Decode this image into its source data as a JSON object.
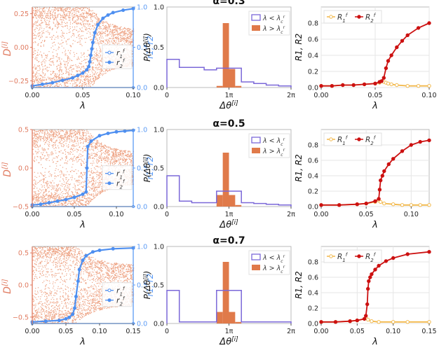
{
  "colors": {
    "scatter": "#e8845a",
    "scatter_axis": "#e07a5f",
    "r_line": "#4e8ff0",
    "r_axis": "#5b9bf5",
    "hist_below": "#7b68d8",
    "hist_above": "#e07a4a",
    "R1": "#f2b84b",
    "R2": "#cc1111",
    "grid": "#e6e6e6"
  },
  "chart_data": [
    {
      "type": "scatter",
      "panel": "row1-left",
      "xlabel": "λ",
      "ylabel_left": "D^[i]",
      "ylabel_right": "r1, r2",
      "xlim": [
        0,
        0.1
      ],
      "ylim_left": [
        -0.3,
        0.3
      ],
      "ylim_right": [
        0,
        1
      ],
      "xticks": [
        0,
        0.05,
        0.1
      ],
      "xtick_labels": [
        "0.00",
        "0.05",
        "0.10"
      ],
      "yticks_left": [
        -0.25,
        0,
        0.25
      ],
      "ytick_labels_left": [
        "−0.25",
        "0.00",
        "0.25"
      ],
      "yticks_right": [
        0,
        0.5,
        1
      ],
      "ytick_labels_right": [
        "0.0",
        "0.5",
        "1.0"
      ],
      "lambda_c": 0.058,
      "spread_below": 0.3,
      "spread_after": 0.13,
      "legend": [
        "r_1^f",
        "r_2^f"
      ],
      "legend_position": "center-right",
      "series": [
        {
          "name": "r_1^f",
          "x": [
            0,
            0.1
          ],
          "y": [
            0,
            0
          ]
        },
        {
          "name": "r_2^f",
          "x": [
            0,
            0.01,
            0.02,
            0.03,
            0.04,
            0.045,
            0.05,
            0.054,
            0.056,
            0.057,
            0.058,
            0.059,
            0.06,
            0.062,
            0.065,
            0.07,
            0.075,
            0.08,
            0.09,
            0.1
          ],
          "y": [
            0.02,
            0.04,
            0.06,
            0.09,
            0.12,
            0.15,
            0.18,
            0.22,
            0.26,
            0.32,
            0.4,
            0.48,
            0.56,
            0.68,
            0.78,
            0.86,
            0.9,
            0.93,
            0.96,
            0.98
          ]
        }
      ]
    },
    {
      "type": "bar",
      "panel": "row1-mid",
      "title": "α=0.3",
      "xlabel": "Δθ^[i]",
      "ylabel": "P(Δθ^[i])",
      "xlim": [
        0,
        2
      ],
      "ylim": [
        0,
        1.0
      ],
      "xticks": [
        0,
        1,
        2
      ],
      "xtick_labels": [
        "0",
        "1π",
        "2π"
      ],
      "yticks": [
        0,
        0.5,
        1.0
      ],
      "ytick_labels": [
        "0.0",
        "0.5",
        "1.0"
      ],
      "legend": [
        "λ < λ_c^r",
        "λ > λ_c^r"
      ],
      "legend_position": "top-right",
      "series": [
        {
          "name": "λ < λ_c^r",
          "style": "step",
          "edges": [
            0,
            0.2,
            0.4,
            0.6,
            0.8,
            1.0,
            1.2,
            1.4,
            1.6,
            1.8,
            2.0
          ],
          "values": [
            0.35,
            0.25,
            0.25,
            0.22,
            0.24,
            0.24,
            0.07,
            0.05,
            0.03,
            0.02
          ]
        },
        {
          "name": "λ > λ_c^r",
          "style": "bar",
          "edges": [
            0.8,
            0.9,
            1.0,
            1.1,
            1.2
          ],
          "values": [
            0.02,
            0.8,
            0.23,
            0.02
          ]
        }
      ]
    },
    {
      "type": "line",
      "panel": "row1-right",
      "xlabel": "λ",
      "ylabel": "R1, R2",
      "xlim": [
        0,
        0.1
      ],
      "ylim": [
        0,
        1.0
      ],
      "xticks": [
        0,
        0.05,
        0.1
      ],
      "xtick_labels": [
        "0.00",
        "0.05",
        "0.10"
      ],
      "yticks": [
        0,
        0.2,
        0.4,
        0.6,
        0.8
      ],
      "ytick_labels": [
        "0.0",
        "0.2",
        "0.4",
        "0.6",
        "0.8"
      ],
      "legend": [
        "R_1^f",
        "R_2^f"
      ],
      "legend_position": "top-left",
      "series": [
        {
          "name": "R_1^f",
          "x": [
            0,
            0.01,
            0.02,
            0.03,
            0.04,
            0.05,
            0.054,
            0.058,
            0.06,
            0.062,
            0.065,
            0.07,
            0.08,
            0.09,
            0.1
          ],
          "y": [
            0.02,
            0.02,
            0.03,
            0.03,
            0.04,
            0.05,
            0.06,
            0.07,
            0.06,
            0.05,
            0.04,
            0.03,
            0.02,
            0.02,
            0.02
          ]
        },
        {
          "name": "R_2^f",
          "x": [
            0,
            0.01,
            0.02,
            0.03,
            0.04,
            0.05,
            0.054,
            0.056,
            0.058,
            0.06,
            0.062,
            0.065,
            0.07,
            0.075,
            0.08,
            0.09,
            0.1
          ],
          "y": [
            0.02,
            0.02,
            0.03,
            0.03,
            0.04,
            0.05,
            0.07,
            0.08,
            0.12,
            0.24,
            0.33,
            0.4,
            0.5,
            0.58,
            0.65,
            0.74,
            0.8
          ]
        }
      ]
    },
    {
      "type": "scatter",
      "panel": "row2-left",
      "xlabel": "λ",
      "ylabel_left": "D^[i]",
      "ylabel_right": "r1, r2",
      "xlim": [
        0,
        0.12
      ],
      "ylim_left": [
        -0.5,
        0.5
      ],
      "ylim_right": [
        0,
        1
      ],
      "xticks": [
        0,
        0.05,
        0.1
      ],
      "xtick_labels": [
        "0.00",
        "0.05",
        "0.10"
      ],
      "yticks_left": [
        -0.5,
        0,
        0.5
      ],
      "ytick_labels_left": [
        "−0.5",
        "0.0",
        "0.5"
      ],
      "yticks_right": [
        0,
        0.5,
        1
      ],
      "ytick_labels_right": [
        "0.0",
        "0.5",
        "1.0"
      ],
      "lambda_c": 0.065,
      "spread_below": 0.5,
      "spread_after": 0.2,
      "legend": [
        "r_1^f",
        "r_2^f"
      ],
      "legend_position": "center-right",
      "series": [
        {
          "name": "r_1^f",
          "x": [
            0,
            0.12
          ],
          "y": [
            0,
            0
          ]
        },
        {
          "name": "r_2^f",
          "x": [
            0,
            0.01,
            0.02,
            0.03,
            0.04,
            0.05,
            0.06,
            0.064,
            0.065,
            0.066,
            0.07,
            0.08,
            0.09,
            0.1,
            0.11,
            0.12
          ],
          "y": [
            0.02,
            0.03,
            0.05,
            0.07,
            0.09,
            0.12,
            0.16,
            0.19,
            0.5,
            0.78,
            0.85,
            0.92,
            0.95,
            0.97,
            0.98,
            0.99
          ]
        }
      ]
    },
    {
      "type": "bar",
      "panel": "row2-mid",
      "title": "α=0.5",
      "xlabel": "Δθ^[i]",
      "ylabel": "P(Δθ^[i])",
      "xlim": [
        0,
        2
      ],
      "ylim": [
        0,
        1.0
      ],
      "xticks": [
        0,
        1,
        2
      ],
      "xtick_labels": [
        "0",
        "1π",
        "2π"
      ],
      "yticks": [
        0,
        0.5,
        1.0
      ],
      "ytick_labels": [
        "0.0",
        "0.5",
        "1.0"
      ],
      "legend": [
        "λ < λ_c^r",
        "λ > λ_c^r"
      ],
      "legend_position": "top-right",
      "series": [
        {
          "name": "λ < λ_c^r",
          "style": "step",
          "edges": [
            0,
            0.2,
            0.4,
            0.6,
            0.8,
            1.0,
            1.2,
            1.4,
            1.6,
            1.8,
            2.0
          ],
          "values": [
            0.4,
            0.07,
            0.05,
            0.05,
            0.2,
            0.2,
            0.05,
            0.04,
            0.03,
            0.02
          ]
        },
        {
          "name": "λ > λ_c^r",
          "style": "bar",
          "edges": [
            0.8,
            0.9,
            1.0,
            1.1,
            1.2
          ],
          "values": [
            0.15,
            0.7,
            0.15,
            0.02
          ]
        }
      ]
    },
    {
      "type": "line",
      "panel": "row2-right",
      "xlabel": "λ",
      "ylabel": "R1, R2",
      "xlim": [
        0,
        0.12
      ],
      "ylim": [
        0,
        1.0
      ],
      "xticks": [
        0,
        0.05,
        0.1
      ],
      "xtick_labels": [
        "0.00",
        "0.05",
        "0.10"
      ],
      "yticks": [
        0,
        0.2,
        0.4,
        0.6,
        0.8
      ],
      "ytick_labels": [
        "0.0",
        "0.2",
        "0.4",
        "0.6",
        "0.8"
      ],
      "legend": [
        "R_1^f",
        "R_2^f"
      ],
      "legend_position": "top-left",
      "series": [
        {
          "name": "R_1^f",
          "x": [
            0,
            0.02,
            0.04,
            0.05,
            0.06,
            0.064,
            0.066,
            0.07,
            0.08,
            0.09,
            0.1,
            0.11,
            0.12
          ],
          "y": [
            0.02,
            0.02,
            0.03,
            0.04,
            0.06,
            0.08,
            0.06,
            0.04,
            0.03,
            0.02,
            0.02,
            0.02,
            0.02
          ]
        },
        {
          "name": "R_2^f",
          "x": [
            0,
            0.02,
            0.04,
            0.05,
            0.06,
            0.064,
            0.065,
            0.066,
            0.068,
            0.07,
            0.075,
            0.08,
            0.09,
            0.1,
            0.11,
            0.12
          ],
          "y": [
            0.02,
            0.02,
            0.03,
            0.04,
            0.07,
            0.1,
            0.22,
            0.34,
            0.4,
            0.46,
            0.55,
            0.62,
            0.72,
            0.8,
            0.84,
            0.86
          ]
        }
      ]
    },
    {
      "type": "scatter",
      "panel": "row3-left",
      "xlabel": "λ",
      "ylabel_left": "D^[i]",
      "ylabel_right": "r1, r2",
      "xlim": [
        0,
        0.15
      ],
      "ylim_left": [
        -0.6,
        0.6
      ],
      "ylim_right": [
        0,
        1
      ],
      "xticks": [
        0,
        0.05,
        0.1,
        0.15
      ],
      "xtick_labels": [
        "0.00",
        "0.05",
        "0.10",
        "0.15"
      ],
      "yticks_left": [
        -0.5,
        0,
        0.5
      ],
      "ytick_labels_left": [
        "−0.5",
        "0.0",
        "0.5"
      ],
      "yticks_right": [
        0,
        0.5,
        1
      ],
      "ytick_labels_right": [
        "0.0",
        "0.5",
        "1.0"
      ],
      "lambda_c": 0.065,
      "spread_below": 0.6,
      "spread_after": 0.3,
      "legend": [
        "r_1^f",
        "r_2^f"
      ],
      "legend_position": "center-right",
      "series": [
        {
          "name": "r_1^f",
          "x": [
            0,
            0.15
          ],
          "y": [
            0,
            0
          ]
        },
        {
          "name": "r_2^f",
          "x": [
            0,
            0.02,
            0.04,
            0.05,
            0.055,
            0.06,
            0.063,
            0.065,
            0.068,
            0.07,
            0.075,
            0.08,
            0.09,
            0.1,
            0.12,
            0.15
          ],
          "y": [
            0.02,
            0.03,
            0.04,
            0.06,
            0.08,
            0.12,
            0.2,
            0.35,
            0.55,
            0.7,
            0.82,
            0.88,
            0.93,
            0.95,
            0.97,
            0.98
          ]
        }
      ]
    },
    {
      "type": "bar",
      "panel": "row3-mid",
      "title": "α=0.7",
      "xlabel": "Δθ^[i]",
      "ylabel": "P(Δθ^[i])",
      "xlim": [
        0,
        2
      ],
      "ylim": [
        0,
        1.0
      ],
      "xticks": [
        0,
        1,
        2
      ],
      "xtick_labels": [
        "0",
        "1π",
        "2π"
      ],
      "yticks": [
        0,
        0.5,
        1.0
      ],
      "ytick_labels": [
        "0.0",
        "0.5",
        "1.0"
      ],
      "legend": [
        "λ < λ_c^r",
        "λ > λ_c^r"
      ],
      "legend_position": "top-right",
      "series": [
        {
          "name": "λ < λ_c^r",
          "style": "step",
          "edges": [
            0,
            0.2,
            0.4,
            0.6,
            0.8,
            1.0,
            1.2,
            1.4,
            1.6,
            1.8,
            2.0
          ],
          "values": [
            0.43,
            0.02,
            0.02,
            0.02,
            0.43,
            0.43,
            0.02,
            0.02,
            0.02,
            0.02
          ]
        },
        {
          "name": "λ > λ_c^r",
          "style": "bar",
          "edges": [
            0.8,
            0.9,
            1.0,
            1.1,
            1.2
          ],
          "values": [
            0.15,
            0.8,
            0.15,
            0.02
          ]
        }
      ]
    },
    {
      "type": "line",
      "panel": "row3-right",
      "xlabel": "λ",
      "ylabel": "R1, R2",
      "xlim": [
        0,
        0.15
      ],
      "ylim": [
        0,
        1.0
      ],
      "xticks": [
        0,
        0.05,
        0.1,
        0.15
      ],
      "xtick_labels": [
        "0.00",
        "0.05",
        "0.10",
        "0.15"
      ],
      "yticks": [
        0,
        0.2,
        0.4,
        0.6,
        0.8
      ],
      "ytick_labels": [
        "0.0",
        "0.2",
        "0.4",
        "0.6",
        "0.8"
      ],
      "legend": [
        "R_1^f",
        "R_2^f"
      ],
      "legend_position": "top-left",
      "series": [
        {
          "name": "R_1^f",
          "x": [
            0,
            0.02,
            0.04,
            0.05,
            0.06,
            0.062,
            0.065,
            0.07,
            0.08,
            0.1,
            0.12,
            0.15
          ],
          "y": [
            0.02,
            0.02,
            0.03,
            0.04,
            0.06,
            0.07,
            0.05,
            0.03,
            0.02,
            0.02,
            0.02,
            0.02
          ]
        },
        {
          "name": "R_2^f",
          "x": [
            0,
            0.02,
            0.04,
            0.05,
            0.06,
            0.062,
            0.064,
            0.065,
            0.066,
            0.068,
            0.07,
            0.075,
            0.08,
            0.09,
            0.1,
            0.12,
            0.15
          ],
          "y": [
            0.02,
            0.02,
            0.03,
            0.04,
            0.06,
            0.1,
            0.25,
            0.45,
            0.55,
            0.6,
            0.64,
            0.7,
            0.75,
            0.81,
            0.85,
            0.9,
            0.93
          ]
        }
      ]
    }
  ]
}
